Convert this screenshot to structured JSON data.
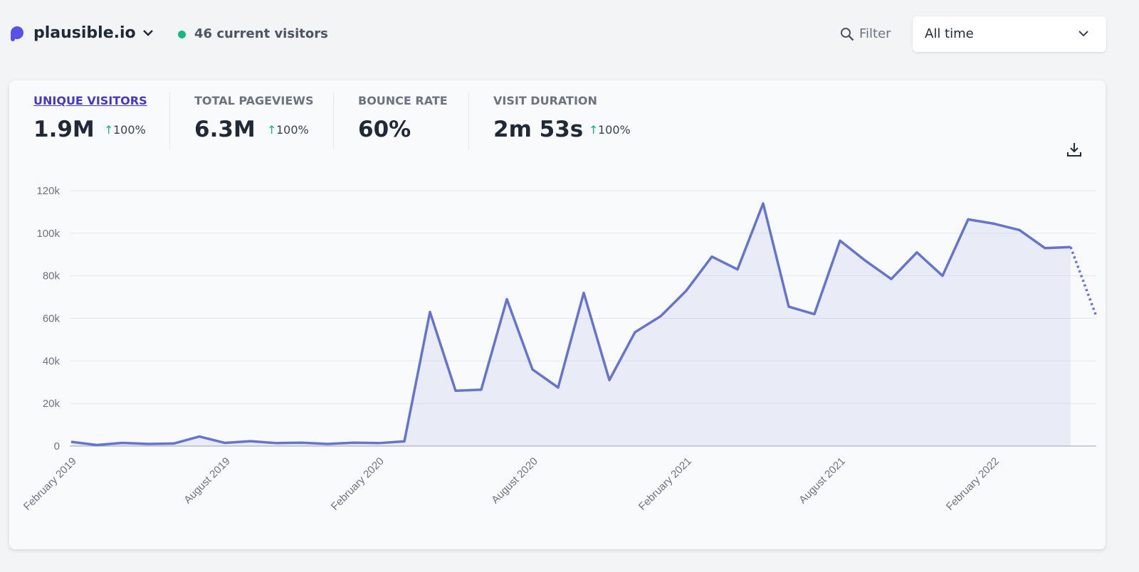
{
  "header": {
    "site": "plausible.io",
    "current_visitors": "46 current visitors",
    "filter": "Filter",
    "period": "All time"
  },
  "metrics": [
    {
      "label": "UNIQUE VISITORS",
      "value": "1.9M",
      "change": "100%"
    },
    {
      "label": "TOTAL PAGEVIEWS",
      "value": "6.3M",
      "change": "100%"
    },
    {
      "label": "BOUNCE RATE",
      "value": "60%"
    },
    {
      "label": "VISIT DURATION",
      "value": "2m 53s",
      "change": "100%"
    }
  ],
  "chart_data": {
    "type": "line",
    "categories": [
      "February 2019",
      null,
      null,
      null,
      null,
      null,
      "August 2019",
      null,
      null,
      null,
      null,
      null,
      "February 2020",
      null,
      null,
      null,
      null,
      null,
      "August 2020",
      null,
      null,
      null,
      null,
      null,
      "February 2021",
      null,
      null,
      null,
      null,
      null,
      "August 2021",
      null,
      null,
      null,
      null,
      null,
      "February 2022",
      null,
      null,
      null,
      null
    ],
    "series": [
      {
        "name": "Visitors",
        "color": "#6574cd",
        "values": [
          2000,
          500,
          1500,
          1000,
          1200,
          4500,
          1500,
          2300,
          1400,
          1600,
          1000,
          1600,
          1400,
          2200,
          63000,
          26000,
          26500,
          69000,
          36000,
          27500,
          72000,
          31000,
          53500,
          61000,
          73000,
          89000,
          83000,
          114000,
          65500,
          62000,
          96500,
          87000,
          78500,
          91000,
          80000,
          106500,
          104500,
          101500,
          93000,
          93500,
          61000
        ]
      }
    ],
    "ylim": [
      0,
      120000
    ],
    "yticks": [
      0,
      {
        "value": 20000,
        "label": "20k"
      },
      {
        "value": 40000,
        "label": "40k"
      },
      {
        "value": 60000,
        "label": "60k"
      },
      {
        "value": 80000,
        "label": "80k"
      },
      {
        "value": 100000,
        "label": "100k"
      },
      {
        "value": 120000,
        "label": "120k"
      }
    ],
    "grid": true,
    "dashed_last_segment": true
  }
}
